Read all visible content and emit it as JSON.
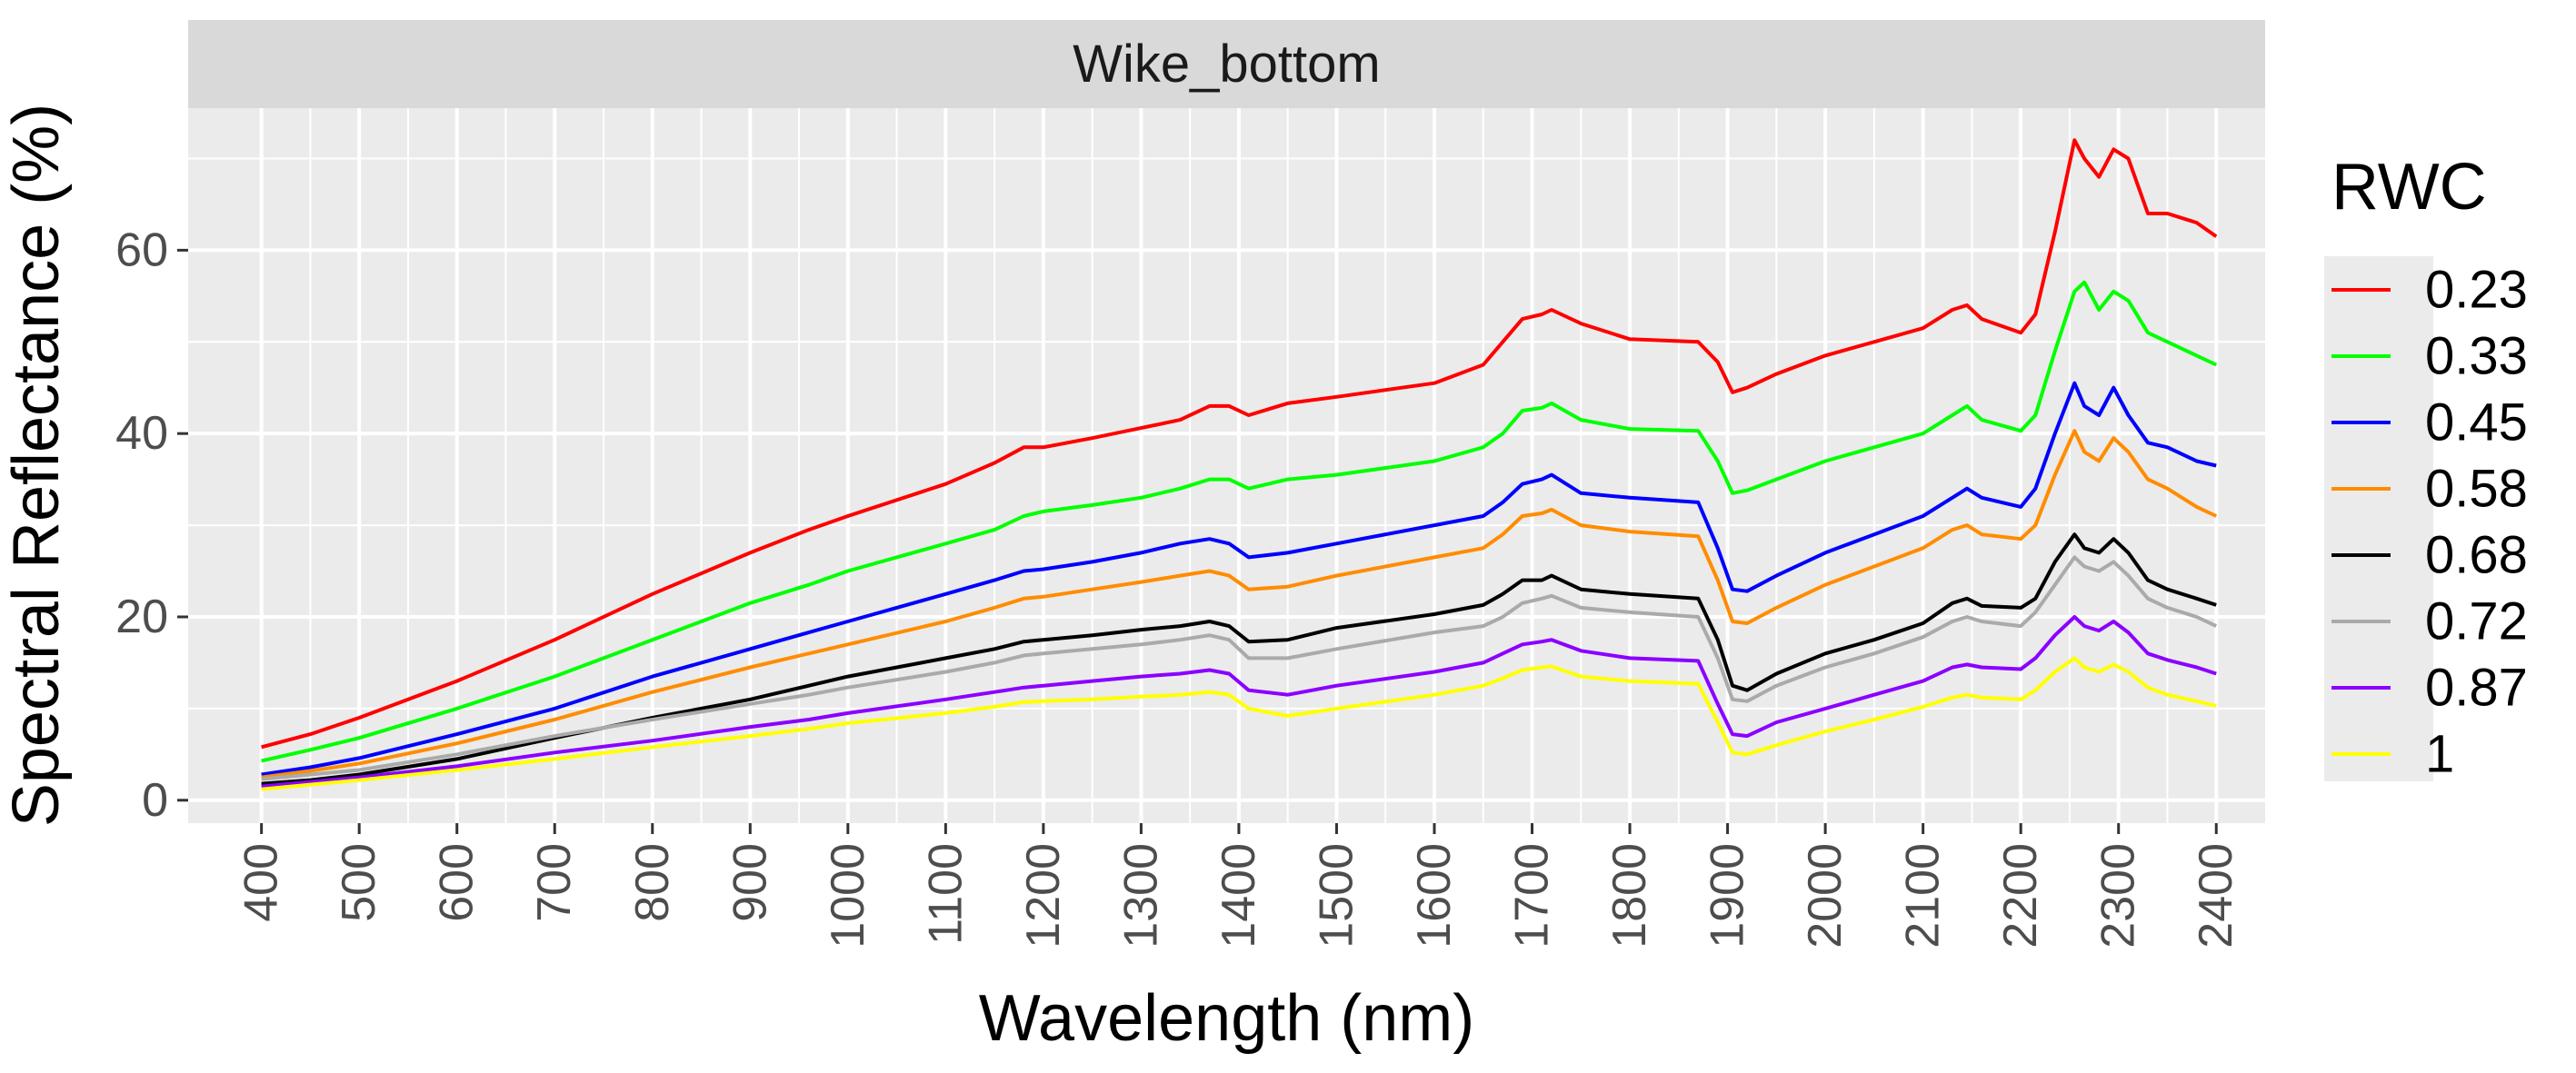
{
  "chart_data": {
    "type": "line",
    "panel_title": "Wike_bottom",
    "xlabel": "Wavelength (nm)",
    "ylabel": "Spectral Reflectance (%)",
    "xlim": [
      325,
      2450
    ],
    "ylim": [
      -2.5,
      75.5
    ],
    "x_ticks": [
      400,
      500,
      600,
      700,
      800,
      900,
      1000,
      1100,
      1200,
      1300,
      1400,
      1500,
      1600,
      1700,
      1800,
      1900,
      2000,
      2100,
      2200,
      2300,
      2400
    ],
    "y_ticks": [
      0,
      20,
      40,
      60
    ],
    "grid": true,
    "legend_position": "right",
    "legend_title": "RWC",
    "x": [
      400,
      450,
      500,
      600,
      700,
      800,
      900,
      960,
      1000,
      1100,
      1150,
      1180,
      1200,
      1250,
      1300,
      1340,
      1370,
      1390,
      1410,
      1450,
      1500,
      1600,
      1650,
      1670,
      1690,
      1710,
      1720,
      1750,
      1800,
      1870,
      1890,
      1905,
      1920,
      1950,
      2000,
      2050,
      2100,
      2130,
      2145,
      2160,
      2200,
      2215,
      2235,
      2255,
      2265,
      2280,
      2295,
      2310,
      2330,
      2350,
      2380,
      2400
    ],
    "series": [
      {
        "name": "0.23",
        "color": "#FF0000",
        "values": [
          5.8,
          7.2,
          9,
          13,
          17.5,
          22.5,
          27,
          29.5,
          31,
          34.5,
          36.8,
          38.5,
          38.5,
          39.5,
          40.6,
          41.5,
          43,
          43,
          42,
          43.3,
          44,
          45.5,
          47.5,
          50,
          52.5,
          53,
          53.5,
          52,
          50.3,
          50,
          47.8,
          44.5,
          45,
          46.5,
          48.5,
          50,
          51.5,
          53.5,
          54,
          52.5,
          51,
          53,
          62,
          72,
          70,
          68,
          71,
          70,
          64,
          64,
          63,
          61.5
        ]
      },
      {
        "name": "0.33",
        "color": "#00FF00",
        "values": [
          4.3,
          5.5,
          6.8,
          10,
          13.5,
          17.5,
          21.5,
          23.5,
          25,
          28,
          29.5,
          31,
          31.5,
          32.2,
          33,
          34,
          35,
          35,
          34,
          35,
          35.5,
          37,
          38.5,
          40,
          42.5,
          42.8,
          43.3,
          41.5,
          40.5,
          40.3,
          37,
          33.5,
          33.8,
          35,
          37,
          38.5,
          40,
          42,
          43,
          41.5,
          40.3,
          42,
          49,
          55.5,
          56.5,
          53.5,
          55.5,
          54.5,
          51,
          50,
          48.5,
          47.5
        ]
      },
      {
        "name": "0.45",
        "color": "#0000FF",
        "values": [
          2.8,
          3.6,
          4.6,
          7.2,
          10,
          13.5,
          16.5,
          18.3,
          19.5,
          22.5,
          24,
          25,
          25.2,
          26,
          27,
          28,
          28.5,
          28,
          26.5,
          27,
          28,
          30,
          31,
          32.5,
          34.5,
          35,
          35.5,
          33.5,
          33,
          32.5,
          27.5,
          23,
          22.8,
          24.5,
          27,
          29,
          31,
          33,
          34,
          33,
          32,
          34,
          40,
          45.5,
          43,
          42,
          45,
          42,
          39,
          38.5,
          37,
          36.5
        ]
      },
      {
        "name": "0.58",
        "color": "#FF8C00",
        "values": [
          2.5,
          3.2,
          4,
          6.2,
          8.8,
          11.8,
          14.5,
          16,
          17,
          19.5,
          21,
          22,
          22.2,
          23,
          23.8,
          24.5,
          25,
          24.5,
          23,
          23.3,
          24.5,
          26.5,
          27.5,
          29,
          31,
          31.3,
          31.7,
          30,
          29.3,
          28.8,
          24,
          19.5,
          19.3,
          21,
          23.5,
          25.5,
          27.5,
          29.5,
          30,
          29,
          28.5,
          30,
          35.5,
          40.3,
          38,
          37,
          39.5,
          38,
          35,
          34,
          32,
          31
        ]
      },
      {
        "name": "0.68",
        "color": "#000000",
        "values": [
          1.8,
          2.2,
          2.8,
          4.5,
          6.8,
          9,
          11,
          12.5,
          13.5,
          15.5,
          16.5,
          17.3,
          17.5,
          18,
          18.6,
          19,
          19.5,
          19,
          17.3,
          17.5,
          18.8,
          20.3,
          21.3,
          22.5,
          24,
          24,
          24.5,
          23,
          22.5,
          22,
          17.5,
          12.5,
          12,
          13.8,
          16,
          17.5,
          19.3,
          21.5,
          22,
          21.2,
          21,
          22,
          26,
          29,
          27.5,
          27,
          28.5,
          27,
          24,
          23,
          22,
          21.3
        ]
      },
      {
        "name": "0.72",
        "color": "#AAAAAA",
        "values": [
          2.3,
          2.8,
          3.3,
          5,
          7,
          8.8,
          10.5,
          11.5,
          12.3,
          14,
          15,
          15.8,
          16,
          16.5,
          17,
          17.5,
          18,
          17.5,
          15.5,
          15.5,
          16.5,
          18.3,
          19,
          20,
          21.5,
          22,
          22.3,
          21,
          20.5,
          20,
          15.5,
          11,
          10.8,
          12.5,
          14.5,
          16,
          17.8,
          19.5,
          20,
          19.5,
          19,
          20.5,
          23.5,
          26.5,
          25.5,
          25,
          26,
          24.5,
          22,
          21,
          20,
          19
        ]
      },
      {
        "name": "0.87",
        "color": "#8B00FF",
        "values": [
          1.5,
          2,
          2.5,
          3.7,
          5.2,
          6.5,
          8,
          8.8,
          9.5,
          11,
          11.8,
          12.3,
          12.5,
          13,
          13.5,
          13.8,
          14.2,
          13.8,
          12,
          11.5,
          12.5,
          14,
          15,
          16,
          17,
          17.3,
          17.5,
          16.3,
          15.5,
          15.2,
          10.5,
          7.2,
          7,
          8.5,
          10,
          11.5,
          13,
          14.5,
          14.8,
          14.5,
          14.3,
          15.5,
          18,
          20,
          19,
          18.5,
          19.5,
          18.3,
          16,
          15.3,
          14.5,
          13.8
        ]
      },
      {
        "name": "1",
        "color": "#FFFF00",
        "values": [
          1.2,
          1.7,
          2.2,
          3.3,
          4.5,
          5.8,
          7,
          7.8,
          8.4,
          9.5,
          10.2,
          10.7,
          10.8,
          11,
          11.3,
          11.5,
          11.8,
          11.5,
          10,
          9.2,
          10,
          11.5,
          12.5,
          13.3,
          14.2,
          14.5,
          14.6,
          13.5,
          13,
          12.7,
          8.5,
          5.2,
          5,
          6,
          7.5,
          8.8,
          10.2,
          11.2,
          11.5,
          11.2,
          11,
          12,
          14,
          15.5,
          14.5,
          14,
          14.8,
          14,
          12.3,
          11.5,
          10.8,
          10.3
        ]
      }
    ]
  }
}
